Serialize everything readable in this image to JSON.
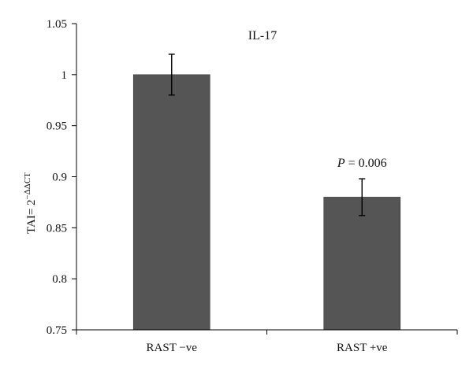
{
  "chart_data": {
    "type": "bar",
    "title": "IL-17",
    "ylabel": "TAI= 2−ΔΔCT",
    "xlabel": "",
    "categories": [
      "RAST −ve",
      "RAST +ve"
    ],
    "values": [
      1.0,
      0.88
    ],
    "error": [
      0.02,
      0.018
    ],
    "ylim": [
      0.75,
      1.05
    ],
    "yticks": [
      "0.75",
      "0.8",
      "0.85",
      "0.9",
      "0.95",
      "1",
      "1.05"
    ],
    "annotations": [
      {
        "text": "P = 0.006",
        "italic_part": "P",
        "rest": " = 0.006",
        "category_index": 1
      }
    ],
    "bar_color": "#555555",
    "grid": false,
    "legend": "none"
  }
}
